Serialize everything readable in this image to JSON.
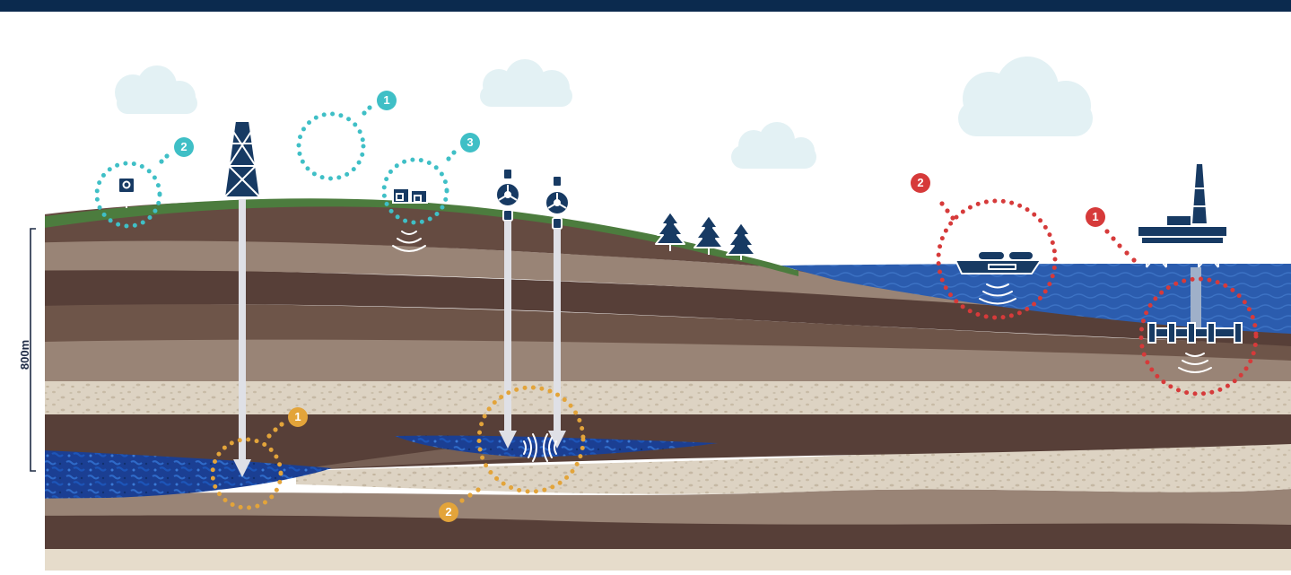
{
  "depth_scale": {
    "label": "800m"
  },
  "markers": {
    "teal": [
      {
        "id": "teal-1",
        "label": "1"
      },
      {
        "id": "teal-2",
        "label": "2"
      },
      {
        "id": "teal-3",
        "label": "3"
      }
    ],
    "orange": [
      {
        "id": "orange-1",
        "label": "1"
      },
      {
        "id": "orange-2",
        "label": "2"
      }
    ],
    "red": [
      {
        "id": "red-1",
        "label": "1"
      },
      {
        "id": "red-2",
        "label": "2"
      }
    ]
  },
  "colors": {
    "top_bar": "#0b2a4e",
    "teal": "#3fbfc6",
    "orange": "#e3a43a",
    "red": "#d63a3a",
    "grass": "#4c7c3e",
    "sea": "#2856a8",
    "reservoir": "#1c4aa3",
    "cloud": "#e3f1f4",
    "dark_rock": "#573f38",
    "mid_rock": "#776055",
    "light_rock": "#998476",
    "sand": "#dcd2c2",
    "base": "#e6dccb"
  }
}
